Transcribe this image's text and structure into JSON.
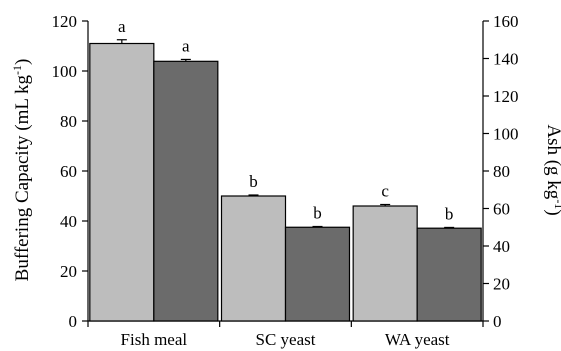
{
  "chart_data": {
    "type": "bar",
    "categories": [
      "Fish meal",
      "SC yeast",
      "WA yeast"
    ],
    "series": [
      {
        "name": "",
        "axis": "left",
        "color": "#bdbdbd",
        "values": [
          111,
          50,
          46
        ],
        "errors": [
          1.5,
          0.4,
          0.6
        ],
        "labels": [
          "a",
          "b",
          "c"
        ]
      },
      {
        "name": "",
        "axis": "right",
        "color": "#6b6b6b",
        "values": [
          138.5,
          50,
          49.5
        ],
        "errors": [
          1.0,
          0.4,
          0.4
        ],
        "labels": [
          "a",
          "b",
          "b"
        ]
      }
    ],
    "ylabel": "Buffering Capacity (mL kg",
    "ylabel_sup": "-1",
    "ylabel_tail": ")",
    "ylim": [
      0,
      120
    ],
    "yticks": [
      "0",
      "20",
      "40",
      "60",
      "80",
      "100",
      "120"
    ],
    "y2label": "Ash (g kg",
    "y2label_sup": "-1",
    "y2label_tail": ")",
    "y2lim": [
      0,
      160
    ],
    "y2ticks": [
      "0",
      "20",
      "40",
      "60",
      "80",
      "100",
      "120",
      "140",
      "160"
    ],
    "grid": false,
    "legend": "none"
  }
}
